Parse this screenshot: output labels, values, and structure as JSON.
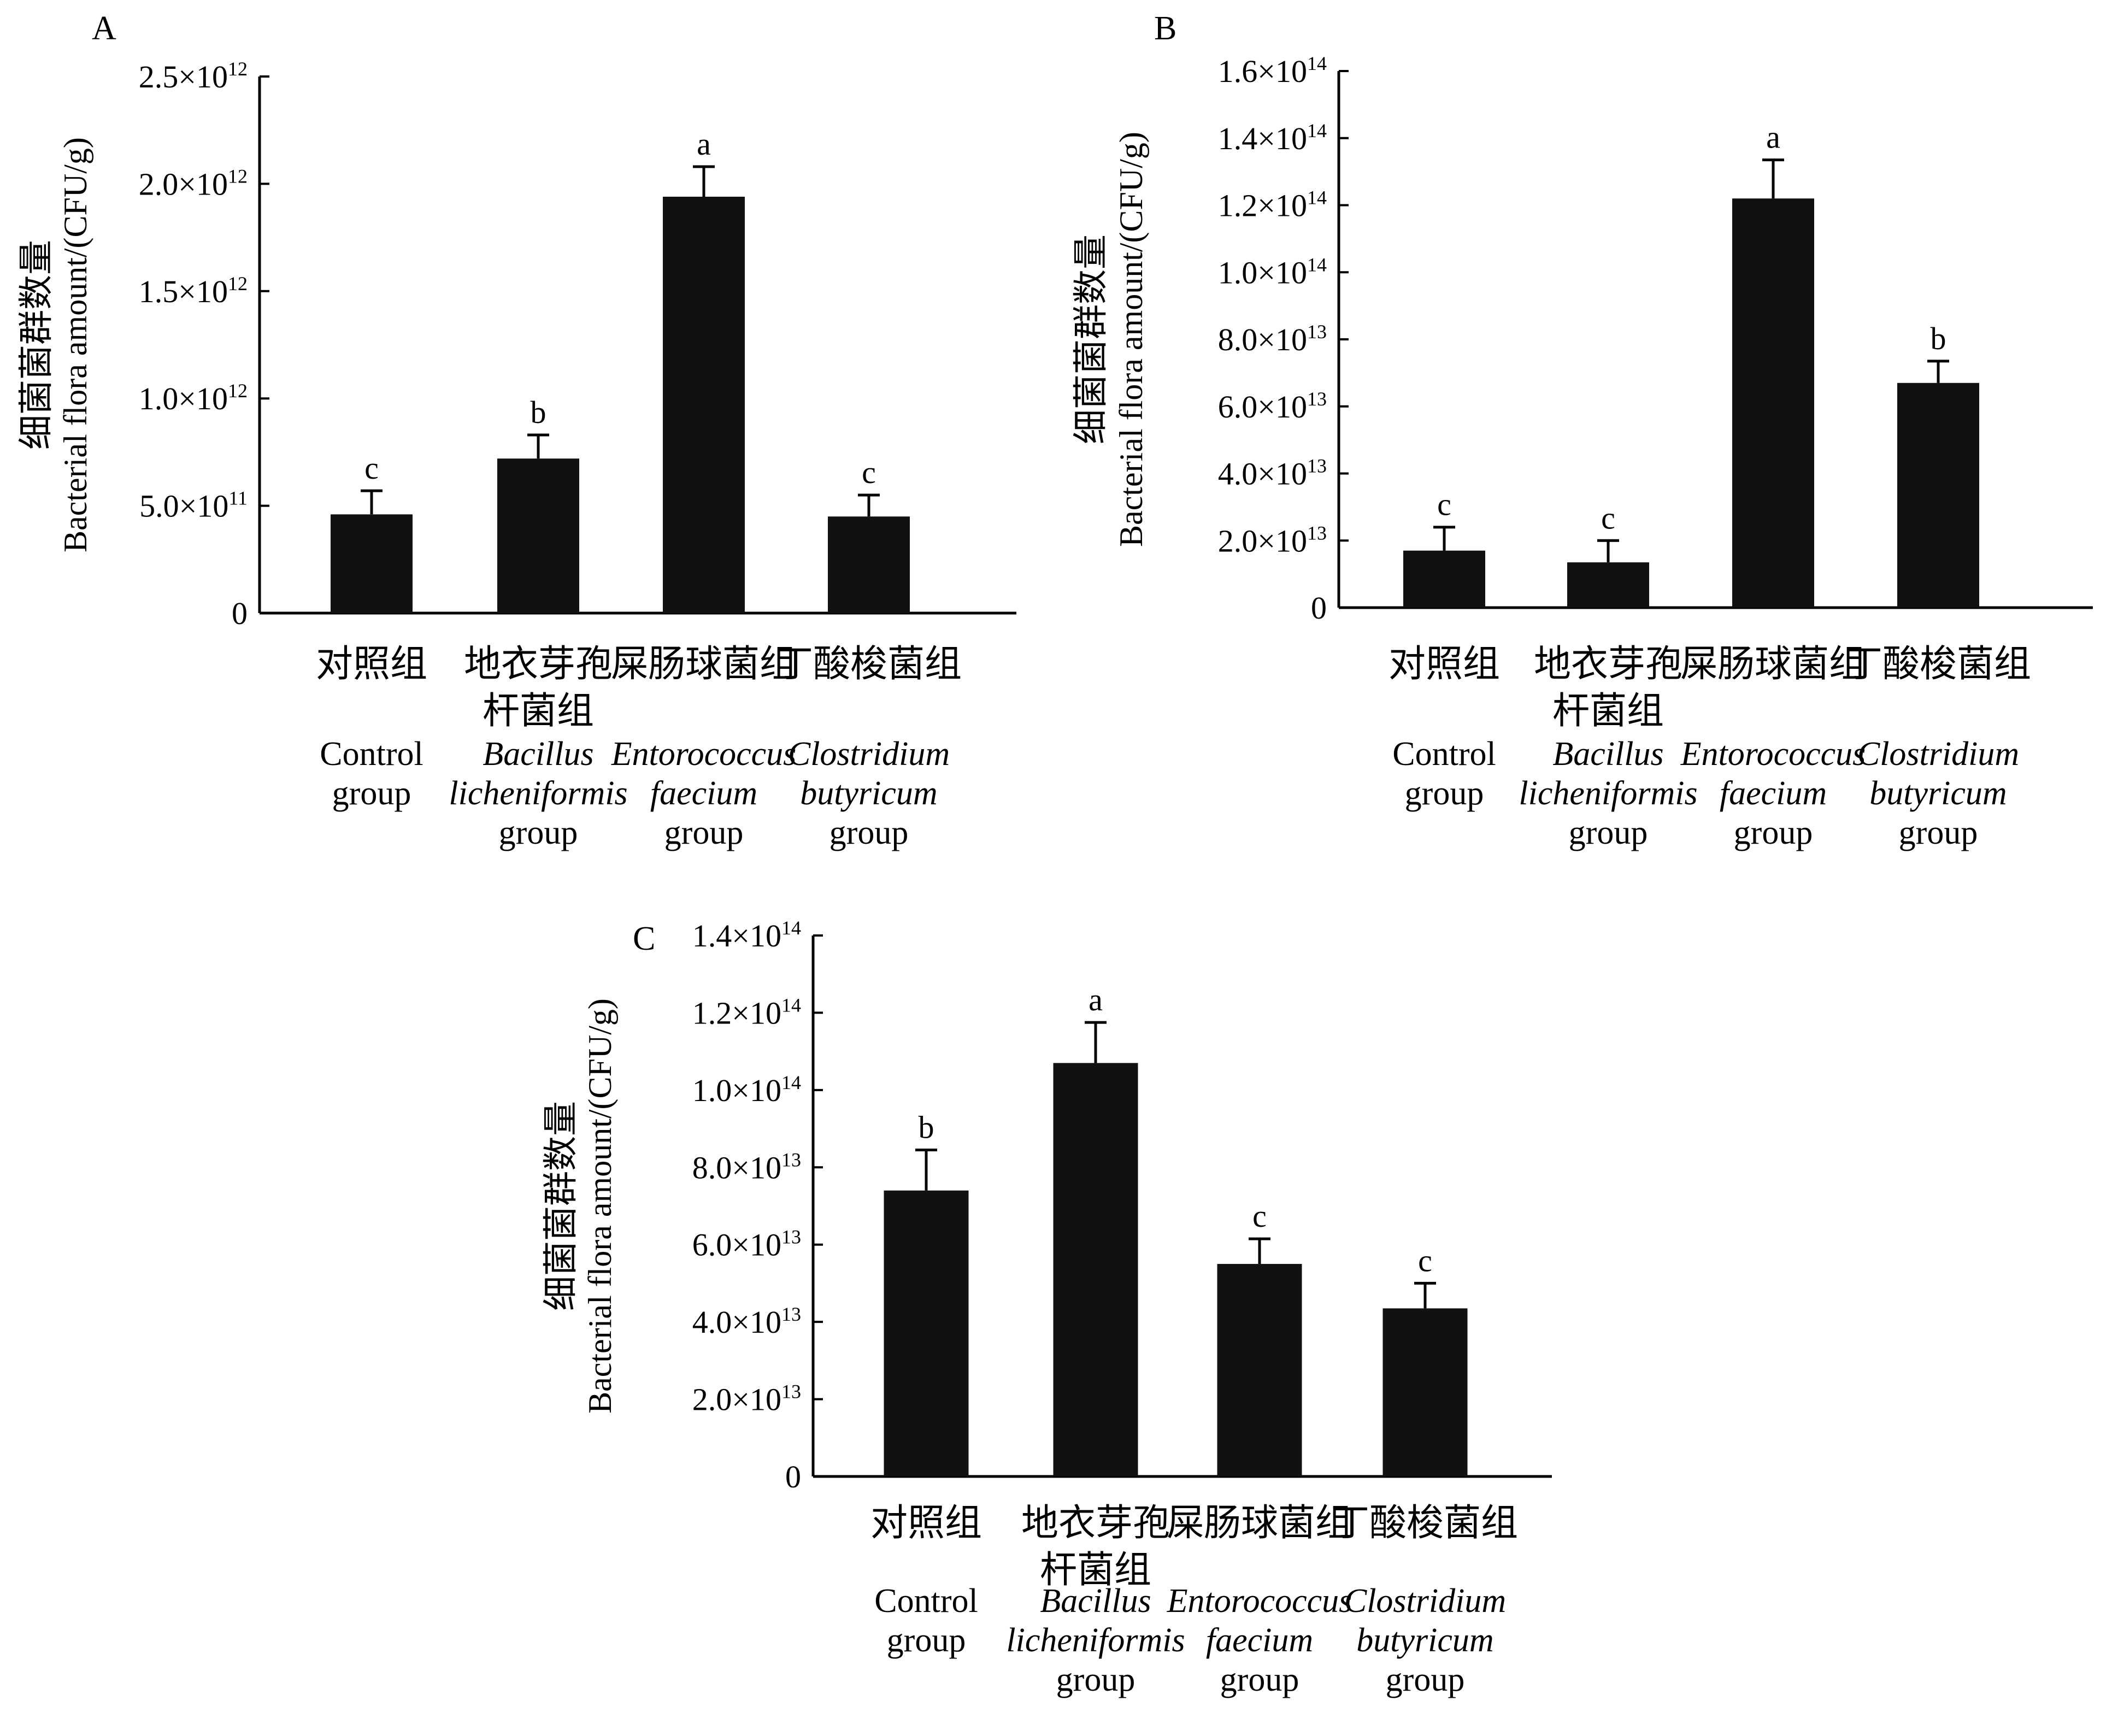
{
  "chart_data": [
    {
      "type": "bar",
      "panel_label": "A",
      "ylabel_cn": "细菌菌群数量",
      "ylabel_en": "Bacterial flora amount/(CFU/g)",
      "categories_cn": [
        "对照组",
        "地衣芽孢\n杆菌组",
        "屎肠球菌组",
        "丁酸梭菌组"
      ],
      "categories_en": [
        "Control\ngroup",
        "Bacillus\nlicheniformis\ngroup",
        "Entorococcus\nfaecium\ngroup",
        "Clostridium\nbutyricum\ngroup"
      ],
      "values": [
        460000000000.0,
        720000000000.0,
        1940000000000.0,
        450000000000.0
      ],
      "errors": [
        110000000000.0,
        110000000000.0,
        140000000000.0,
        100000000000.0
      ],
      "significance": [
        "c",
        "b",
        "a",
        "c"
      ],
      "ylim": [
        0,
        2500000000000.0
      ],
      "ticks": [
        0,
        500000000000.0,
        1000000000000.0,
        1500000000000.0,
        2000000000000.0,
        2500000000000.0
      ],
      "tick_labels": [
        {
          "m": "0",
          "e": ""
        },
        {
          "m": "5.0×10",
          "e": "11"
        },
        {
          "m": "1.0×10",
          "e": "12"
        },
        {
          "m": "1.5×10",
          "e": "12"
        },
        {
          "m": "2.0×10",
          "e": "12"
        },
        {
          "m": "2.5×10",
          "e": "12"
        }
      ]
    },
    {
      "type": "bar",
      "panel_label": "B",
      "ylabel_cn": "细菌菌群数量",
      "ylabel_en": "Bacterial flora amount/(CFU/g)",
      "categories_cn": [
        "对照组",
        "地衣芽孢\n杆菌组",
        "屎肠球菌组",
        "丁酸梭菌组"
      ],
      "categories_en": [
        "Control\ngroup",
        "Bacillus\nlicheniformis\ngroup",
        "Entorococcus\nfaecium\ngroup",
        "Clostridium\nbutyricum\ngroup"
      ],
      "values": [
        17000000000000.0,
        13500000000000.0,
        122000000000000.0,
        67000000000000.0
      ],
      "errors": [
        7000000000000.0,
        6500000000000.0,
        11500000000000.0,
        6500000000000.0
      ],
      "significance": [
        "c",
        "c",
        "a",
        "b"
      ],
      "ylim": [
        0,
        160000000000000.0
      ],
      "ticks": [
        0,
        20000000000000.0,
        40000000000000.0,
        60000000000000.0,
        80000000000000.0,
        100000000000000.0,
        120000000000000.0,
        140000000000000.0,
        160000000000000.0
      ],
      "tick_labels": [
        {
          "m": "0",
          "e": ""
        },
        {
          "m": "2.0×10",
          "e": "13"
        },
        {
          "m": "4.0×10",
          "e": "13"
        },
        {
          "m": "6.0×10",
          "e": "13"
        },
        {
          "m": "8.0×10",
          "e": "13"
        },
        {
          "m": "1.0×10",
          "e": "14"
        },
        {
          "m": "1.2×10",
          "e": "14"
        },
        {
          "m": "1.4×10",
          "e": "14"
        },
        {
          "m": "1.6×10",
          "e": "14"
        }
      ]
    },
    {
      "type": "bar",
      "panel_label": "C",
      "ylabel_cn": "细菌菌群数量",
      "ylabel_en": "Bacterial flora amount/(CFU/g)",
      "categories_cn": [
        "对照组",
        "地衣芽孢\n杆菌组",
        "屎肠球菌组",
        "丁酸梭菌组"
      ],
      "categories_en": [
        "Control\ngroup",
        "Bacillus\nlicheniformis\ngroup",
        "Entorococcus\nfaecium\ngroup",
        "Clostridium\nbutyricum\ngroup"
      ],
      "values": [
        74000000000000.0,
        107000000000000.0,
        55000000000000.0,
        43500000000000.0
      ],
      "errors": [
        10500000000000.0,
        10500000000000.0,
        6500000000000.0,
        6500000000000.0
      ],
      "significance": [
        "b",
        "a",
        "c",
        "c"
      ],
      "ylim": [
        0,
        140000000000000.0
      ],
      "ticks": [
        0,
        20000000000000.0,
        40000000000000.0,
        60000000000000.0,
        80000000000000.0,
        100000000000000.0,
        120000000000000.0,
        140000000000000.0
      ],
      "tick_labels": [
        {
          "m": "0",
          "e": ""
        },
        {
          "m": "2.0×10",
          "e": "13"
        },
        {
          "m": "4.0×10",
          "e": "13"
        },
        {
          "m": "6.0×10",
          "e": "13"
        },
        {
          "m": "8.0×10",
          "e": "13"
        },
        {
          "m": "1.0×10",
          "e": "14"
        },
        {
          "m": "1.2×10",
          "e": "14"
        },
        {
          "m": "1.4×10",
          "e": "14"
        }
      ]
    }
  ]
}
